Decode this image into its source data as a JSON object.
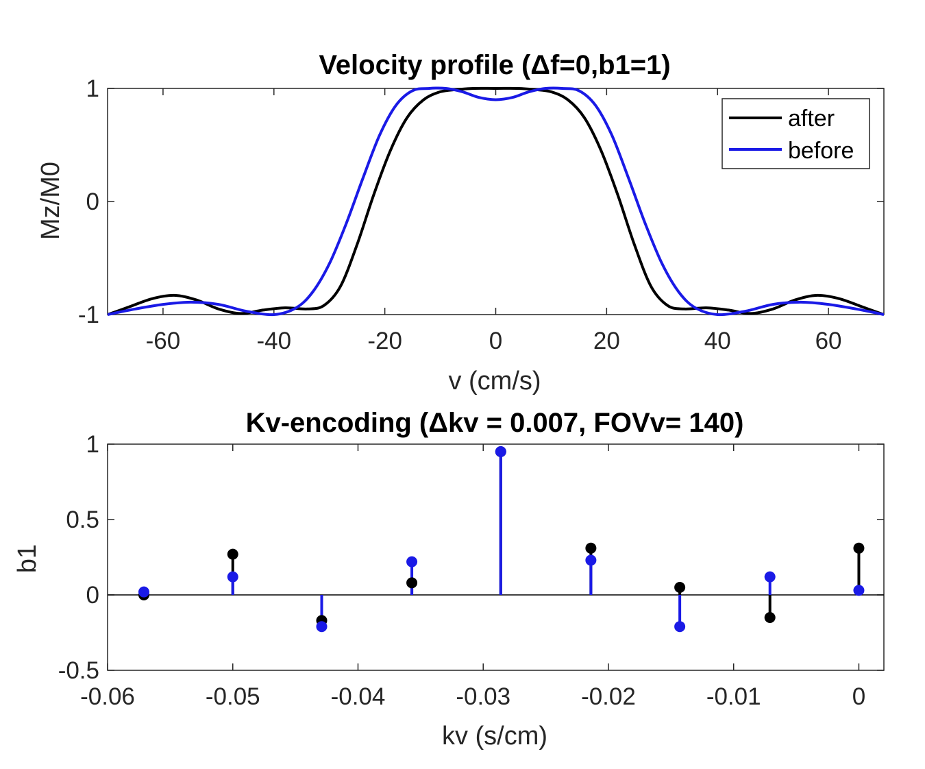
{
  "chart_data": [
    {
      "type": "line",
      "title": "Velocity profile (Δf=0,b1=1)",
      "xlabel": "v (cm/s)",
      "ylabel": "Mz/M0",
      "xlim": [
        -70,
        70
      ],
      "ylim": [
        -1,
        1
      ],
      "xticks": [
        -60,
        -40,
        -20,
        0,
        20,
        40,
        60
      ],
      "yticks": [
        -1,
        0,
        1
      ],
      "grid": false,
      "legend_position": "top-right",
      "series": [
        {
          "name": "after",
          "color": "#000000",
          "x": [
            -70,
            -66,
            -62,
            -58,
            -54,
            -50,
            -46,
            -42,
            -38,
            -34,
            -31,
            -28,
            -25,
            -22,
            -19,
            -16,
            -13,
            -10,
            -7,
            -4,
            0,
            4,
            7,
            10,
            13,
            16,
            19,
            22,
            25,
            28,
            31,
            34,
            38,
            42,
            46,
            50,
            54,
            58,
            62,
            66,
            70
          ],
          "y": [
            -1.0,
            -0.93,
            -0.86,
            -0.83,
            -0.87,
            -0.95,
            -0.99,
            -0.96,
            -0.94,
            -0.95,
            -0.92,
            -0.75,
            -0.38,
            0.06,
            0.45,
            0.74,
            0.9,
            0.97,
            0.99,
            1.0,
            1.0,
            1.0,
            0.99,
            0.97,
            0.9,
            0.74,
            0.45,
            0.06,
            -0.38,
            -0.75,
            -0.92,
            -0.95,
            -0.94,
            -0.96,
            -0.99,
            -0.95,
            -0.87,
            -0.83,
            -0.86,
            -0.93,
            -1.0
          ]
        },
        {
          "name": "before",
          "color": "#1a1ae6",
          "x": [
            -70,
            -65,
            -60,
            -55,
            -50,
            -45,
            -40,
            -36,
            -33,
            -30,
            -27,
            -24,
            -21,
            -18,
            -15,
            -12,
            -9,
            -6,
            -3,
            0,
            3,
            6,
            9,
            12,
            15,
            18,
            21,
            24,
            27,
            30,
            33,
            36,
            40,
            45,
            50,
            55,
            60,
            65,
            70
          ],
          "y": [
            -1.0,
            -0.95,
            -0.91,
            -0.89,
            -0.91,
            -0.97,
            -1.0,
            -0.94,
            -0.8,
            -0.55,
            -0.2,
            0.2,
            0.58,
            0.85,
            0.98,
            1.0,
            1.0,
            0.97,
            0.92,
            0.9,
            0.92,
            0.97,
            1.0,
            1.0,
            0.98,
            0.85,
            0.58,
            0.2,
            -0.2,
            -0.55,
            -0.8,
            -0.94,
            -1.0,
            -0.97,
            -0.91,
            -0.89,
            -0.91,
            -0.95,
            -1.0
          ]
        }
      ]
    },
    {
      "type": "stem",
      "title": "Kv-encoding (Δkv = 0.007, FOVv= 140)",
      "xlabel": "kv (s/cm)",
      "ylabel": "b1",
      "xlim": [
        -0.06,
        0.002
      ],
      "ylim": [
        -0.5,
        1
      ],
      "xticks": [
        -0.06,
        -0.05,
        -0.04,
        -0.03,
        -0.02,
        -0.01,
        0
      ],
      "yticks": [
        -0.5,
        0,
        0.5,
        1
      ],
      "grid": false,
      "series": [
        {
          "name": "after",
          "color": "#000000",
          "x": [
            -0.0571,
            -0.05,
            -0.0429,
            -0.0357,
            -0.0286,
            -0.0214,
            -0.0143,
            -0.0071,
            0
          ],
          "y": [
            0.0,
            0.27,
            -0.17,
            0.08,
            0.95,
            0.31,
            0.05,
            -0.15,
            0.31
          ]
        },
        {
          "name": "before",
          "color": "#1a1ae6",
          "x": [
            -0.0571,
            -0.05,
            -0.0429,
            -0.0357,
            -0.0286,
            -0.0214,
            -0.0143,
            -0.0071,
            0
          ],
          "y": [
            0.02,
            0.12,
            -0.21,
            0.22,
            0.95,
            0.23,
            -0.21,
            0.12,
            0.03
          ]
        }
      ]
    }
  ]
}
